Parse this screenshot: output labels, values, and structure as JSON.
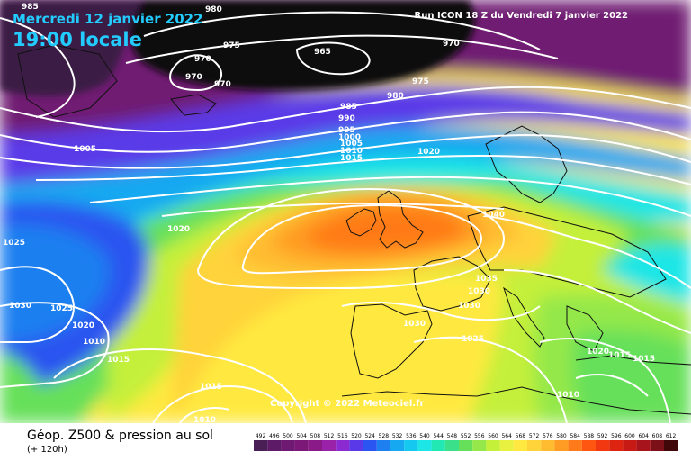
{
  "header": {
    "date": "Mercredi 12 janvier 2022",
    "time": "19:00 locale",
    "run": "Run ICON 18 Z du Vendredi 7 janvier 2022"
  },
  "copyright": "Copyright © 2022 Meteociel.fr",
  "footer": {
    "title": "Géop. Z500 & pression au sol",
    "subtitle": "(+ 120h)"
  },
  "legend": {
    "values": [
      "492",
      "496",
      "500",
      "504",
      "508",
      "512",
      "516",
      "520",
      "524",
      "528",
      "532",
      "536",
      "540",
      "544",
      "548",
      "552",
      "556",
      "560",
      "564",
      "568",
      "572",
      "576",
      "580",
      "584",
      "588",
      "592",
      "596",
      "600",
      "604",
      "608",
      "612"
    ],
    "colors": [
      "#4a1f55",
      "#5d1a66",
      "#6f1a72",
      "#7c1878",
      "#8a1a88",
      "#9a22a8",
      "#8a2ad0",
      "#5a3ae8",
      "#2a55f0",
      "#1d7ff0",
      "#16a8f0",
      "#15c8f0",
      "#1fe6e6",
      "#22e8b4",
      "#3be08a",
      "#66e05a",
      "#94e84a",
      "#c4f03a",
      "#e8f040",
      "#ffe940",
      "#ffd33a",
      "#ffbc30",
      "#ff9c24",
      "#ff7a18",
      "#ff5612",
      "#f23810",
      "#dd2410",
      "#c81a14",
      "#a8141c",
      "#7c1018",
      "#400808"
    ]
  },
  "map": {
    "isobar_labels": [
      {
        "id": "p980-top",
        "text": "980"
      },
      {
        "id": "p975-a",
        "text": "975"
      },
      {
        "id": "p970-a",
        "text": "970"
      },
      {
        "id": "p970-b",
        "text": "970"
      },
      {
        "id": "p970-c",
        "text": "970"
      },
      {
        "id": "p965",
        "text": "965"
      },
      {
        "id": "p970-top",
        "text": "970"
      },
      {
        "id": "p975-b",
        "text": "975"
      },
      {
        "id": "p980-b",
        "text": "980"
      },
      {
        "id": "p985-a",
        "text": "985"
      },
      {
        "id": "p990",
        "text": "990"
      },
      {
        "id": "p995",
        "text": "995"
      },
      {
        "id": "p1000",
        "text": "1000"
      },
      {
        "id": "p1005-a",
        "text": "1005"
      },
      {
        "id": "p1010-a",
        "text": "1010"
      },
      {
        "id": "p1015-a",
        "text": "1015"
      },
      {
        "id": "p1020-a",
        "text": "1020"
      },
      {
        "id": "p985-left",
        "text": "985"
      },
      {
        "id": "p1005-left",
        "text": "1005"
      },
      {
        "id": "p1020-b",
        "text": "1020"
      },
      {
        "id": "p1025-a",
        "text": "1025"
      },
      {
        "id": "p1030-a",
        "text": "1030"
      },
      {
        "id": "p1025-b",
        "text": "1025"
      },
      {
        "id": "p1020-c",
        "text": "1020"
      },
      {
        "id": "p1010-b",
        "text": "1010"
      },
      {
        "id": "p1015-b",
        "text": "1015"
      },
      {
        "id": "p1015-c",
        "text": "1015"
      },
      {
        "id": "p1010-c",
        "text": "1010"
      },
      {
        "id": "p1040",
        "text": "1040"
      },
      {
        "id": "p1035",
        "text": "1035"
      },
      {
        "id": "p1030-b",
        "text": "1030"
      },
      {
        "id": "p1030-c",
        "text": "1030"
      },
      {
        "id": "p1030-d",
        "text": "1030"
      },
      {
        "id": "p1025-c",
        "text": "1025"
      },
      {
        "id": "p1020-d",
        "text": "1020"
      },
      {
        "id": "p1015-d",
        "text": "1015"
      },
      {
        "id": "p1015-e",
        "text": "1015"
      },
      {
        "id": "p1010-d",
        "text": "1010"
      }
    ]
  }
}
